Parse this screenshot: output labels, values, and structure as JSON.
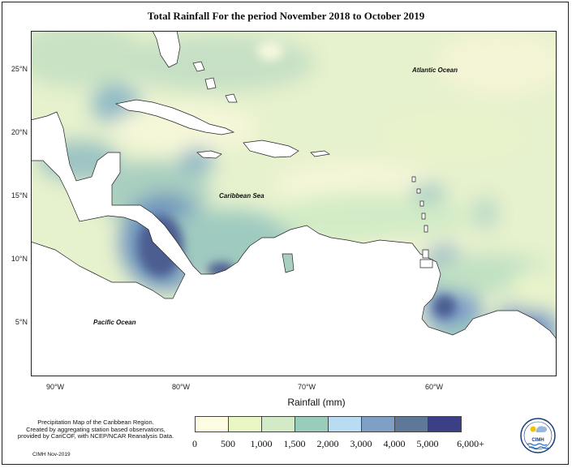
{
  "title": "Total Rainfall For the period November 2018 to October 2019",
  "labels": {
    "atlantic": "Atlantic Ocean",
    "caribbean": "Caribbean Sea",
    "pacific": "Pacific Ocean"
  },
  "axes": {
    "x_ticks": [
      "90°W",
      "80°W",
      "70°W",
      "60°W"
    ],
    "y_ticks": [
      "25°N",
      "20°N",
      "15°N",
      "10°N",
      "5°N"
    ]
  },
  "legend": {
    "title": "Rainfall (mm)",
    "labels": [
      "0",
      "500",
      "1,000",
      "1,500",
      "2,000",
      "3,000",
      "4,000",
      "5,000",
      "6,000+"
    ],
    "colors": [
      "#fdfbe1",
      "#e9f7c5",
      "#d2ebc6",
      "#98cdbc",
      "#b9dcf3",
      "#7f9fc6",
      "#5f7898",
      "#3a3f86"
    ]
  },
  "footnote": {
    "line1": "Precipitation Map of the Caribbean Region.",
    "line2": "Created by aggregating station based observations,",
    "line3": "provided by CariCOF, with NCEP/NCAR Reanalysis Data.",
    "credit": "CIMH Nov-2019"
  },
  "logo": {
    "text": "CIMH"
  }
}
